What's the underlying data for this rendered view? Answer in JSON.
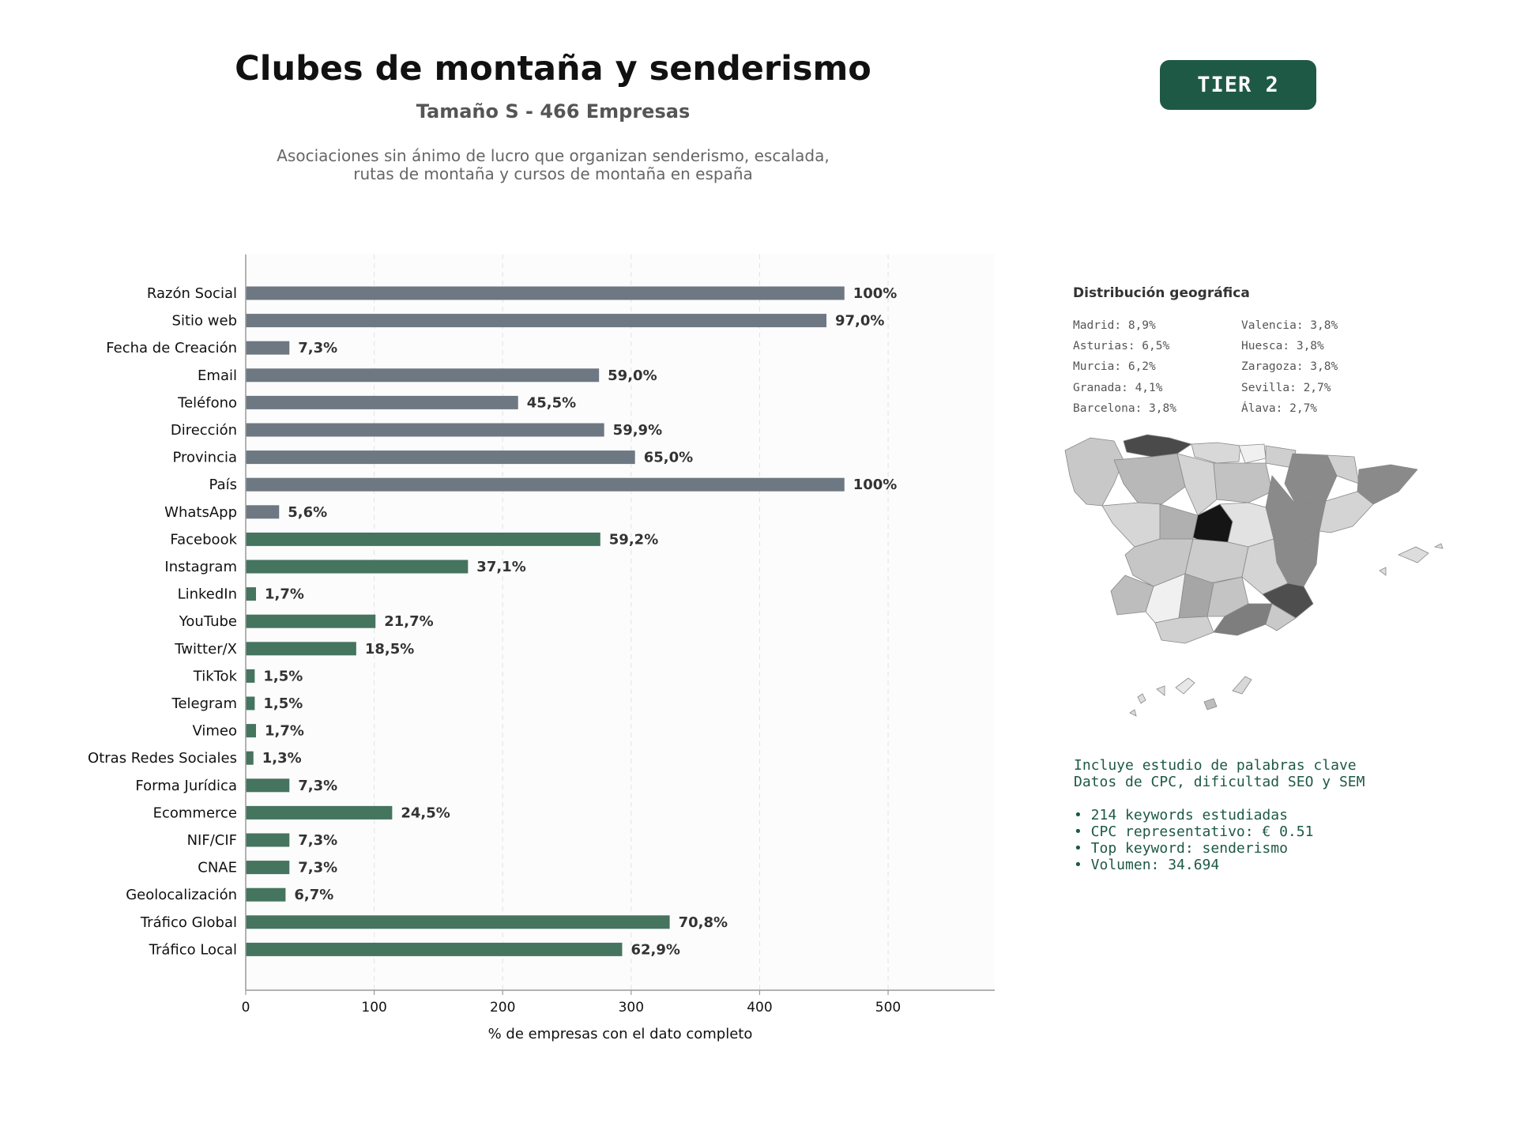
{
  "header": {
    "title": "Clubes de montaña y senderismo",
    "subtitle": "Tamaño S - 466 Empresas",
    "description_lines": [
      "Asociaciones sin ánimo de lucro que organizan senderismo, escalada,",
      "rutas de montaña y cursos de montaña en españa"
    ],
    "tier_badge": "TIER 2"
  },
  "colors": {
    "basic_bar": "#6e7882",
    "social_bar": "#45745f",
    "badge": "#1e5945",
    "keyword_text": "#1e5945"
  },
  "chart_data": {
    "type": "bar",
    "orientation": "horizontal",
    "categories": [
      "Razón Social",
      "Sitio web",
      "Fecha de Creación",
      "Email",
      "Teléfono",
      "Dirección",
      "Provincia",
      "País",
      "WhatsApp",
      "Facebook",
      "Instagram",
      "LinkedIn",
      "YouTube",
      "Twitter/X",
      "TikTok",
      "Telegram",
      "Vimeo",
      "Otras Redes Sociales",
      "Forma Jurídica",
      "Ecommerce",
      "NIF/CIF",
      "CNAE",
      "Geolocalización",
      "Tráfico Global",
      "Tráfico Local"
    ],
    "values": [
      466,
      452,
      34,
      275,
      212,
      279,
      303,
      466,
      26,
      276,
      173,
      8,
      101,
      86,
      7,
      7,
      8,
      6,
      34,
      114,
      34,
      34,
      31,
      330,
      293
    ],
    "labels": [
      "100%",
      "97,0%",
      "7,3%",
      "59,0%",
      "45,5%",
      "59,9%",
      "65,0%",
      "100%",
      "5,6%",
      "59,2%",
      "37,1%",
      "1,7%",
      "21,7%",
      "18,5%",
      "1,5%",
      "1,5%",
      "1,7%",
      "1,3%",
      "7,3%",
      "24,5%",
      "7,3%",
      "7,3%",
      "6,7%",
      "70,8%",
      "62,9%"
    ],
    "groups": [
      "basic",
      "basic",
      "basic",
      "basic",
      "basic",
      "basic",
      "basic",
      "basic",
      "basic",
      "social",
      "social",
      "social",
      "social",
      "social",
      "social",
      "social",
      "social",
      "social",
      "social",
      "social",
      "social",
      "social",
      "social",
      "social",
      "social"
    ],
    "xlabel": "% de empresas con el dato completo",
    "xticks": [
      0,
      100,
      200,
      300,
      400,
      500
    ],
    "xlim": [
      0,
      583
    ],
    "grid": "vertical dashed"
  },
  "geo": {
    "title": "Distribución geográfica",
    "left_column": [
      "Madrid: 8,9%",
      "Asturias: 6,5%",
      "Murcia: 6,2%",
      "Granada: 4,1%",
      "Barcelona: 3,8%"
    ],
    "right_column": [
      "Valencia: 3,8%",
      "Huesca: 3,8%",
      "Zaragoza: 3,8%",
      "Sevilla: 2,7%",
      "Álava: 2,7%"
    ]
  },
  "keywords": {
    "intro_lines": [
      "Incluye estudio de palabras clave",
      "Datos de CPC, dificultad SEO y SEM"
    ],
    "bullets": [
      "• 214 keywords estudiadas",
      "• CPC representativo: € 0.51",
      "• Top keyword: senderismo",
      "• Volumen: 34.694"
    ]
  }
}
